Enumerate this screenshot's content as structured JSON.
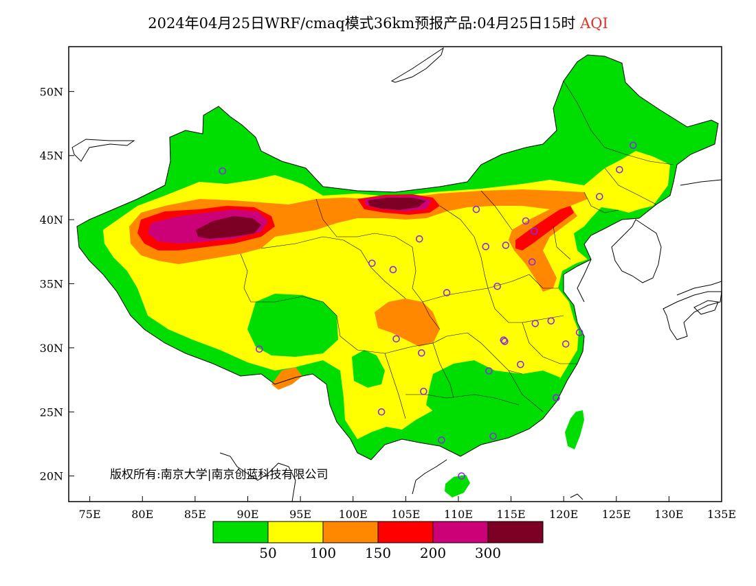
{
  "title": {
    "main": "2024年04月25日WRF/cmaq模式36km预报产品:04月25日15时",
    "variable": "AQI"
  },
  "axes": {
    "lat_labels": [
      "50N",
      "45N",
      "40N",
      "35N",
      "30N",
      "25N",
      "20N"
    ],
    "lat_values": [
      50,
      45,
      40,
      35,
      30,
      25,
      20
    ],
    "lon_labels": [
      "75E",
      "80E",
      "85E",
      "90E",
      "95E",
      "100E",
      "105E",
      "110E",
      "115E",
      "120E",
      "125E",
      "130E",
      "135E"
    ],
    "lon_values": [
      75,
      80,
      85,
      90,
      95,
      100,
      105,
      110,
      115,
      120,
      125,
      130,
      135
    ],
    "lon_range": [
      73,
      135
    ],
    "lat_range": [
      18,
      53.5
    ]
  },
  "copyright": "版权所有:南京大学|南京创蓝科技有限公司",
  "legend": {
    "colors": [
      "#00dd00",
      "#ffff00",
      "#ff8800",
      "#ff0000",
      "#cc0077",
      "#7b0024"
    ],
    "labels": [
      "50",
      "100",
      "150",
      "200",
      "300"
    ]
  },
  "colors": {
    "good": "#00dd00",
    "moderate": "#ffff00",
    "sensitive": "#ff8800",
    "unhealthy": "#ff0000",
    "very_unhealthy": "#cc0077",
    "hazardous": "#7b0024",
    "marker": "#8a2be2"
  },
  "cities": [
    {
      "lon": 87.6,
      "lat": 43.8
    },
    {
      "lon": 91.1,
      "lat": 29.9
    },
    {
      "lon": 101.8,
      "lat": 36.6
    },
    {
      "lon": 103.8,
      "lat": 36.1
    },
    {
      "lon": 106.3,
      "lat": 38.5
    },
    {
      "lon": 111.7,
      "lat": 40.8
    },
    {
      "lon": 112.6,
      "lat": 37.9
    },
    {
      "lon": 114.5,
      "lat": 38.0
    },
    {
      "lon": 116.4,
      "lat": 39.9
    },
    {
      "lon": 117.2,
      "lat": 39.1
    },
    {
      "lon": 117.0,
      "lat": 36.7
    },
    {
      "lon": 113.7,
      "lat": 34.8
    },
    {
      "lon": 108.9,
      "lat": 34.3
    },
    {
      "lon": 104.1,
      "lat": 30.7
    },
    {
      "lon": 106.5,
      "lat": 29.6
    },
    {
      "lon": 106.7,
      "lat": 26.6
    },
    {
      "lon": 102.7,
      "lat": 25.0
    },
    {
      "lon": 108.4,
      "lat": 22.8
    },
    {
      "lon": 113.3,
      "lat": 23.1
    },
    {
      "lon": 110.3,
      "lat": 20.0
    },
    {
      "lon": 112.9,
      "lat": 28.2
    },
    {
      "lon": 114.3,
      "lat": 30.6
    },
    {
      "lon": 115.9,
      "lat": 28.7
    },
    {
      "lon": 117.3,
      "lat": 31.9
    },
    {
      "lon": 118.8,
      "lat": 32.1
    },
    {
      "lon": 120.2,
      "lat": 30.3
    },
    {
      "lon": 121.5,
      "lat": 31.2
    },
    {
      "lon": 119.3,
      "lat": 26.1
    },
    {
      "lon": 123.4,
      "lat": 41.8
    },
    {
      "lon": 125.3,
      "lat": 43.9
    },
    {
      "lon": 126.6,
      "lat": 45.8
    },
    {
      "lon": 114.4,
      "lat": 30.5
    }
  ]
}
